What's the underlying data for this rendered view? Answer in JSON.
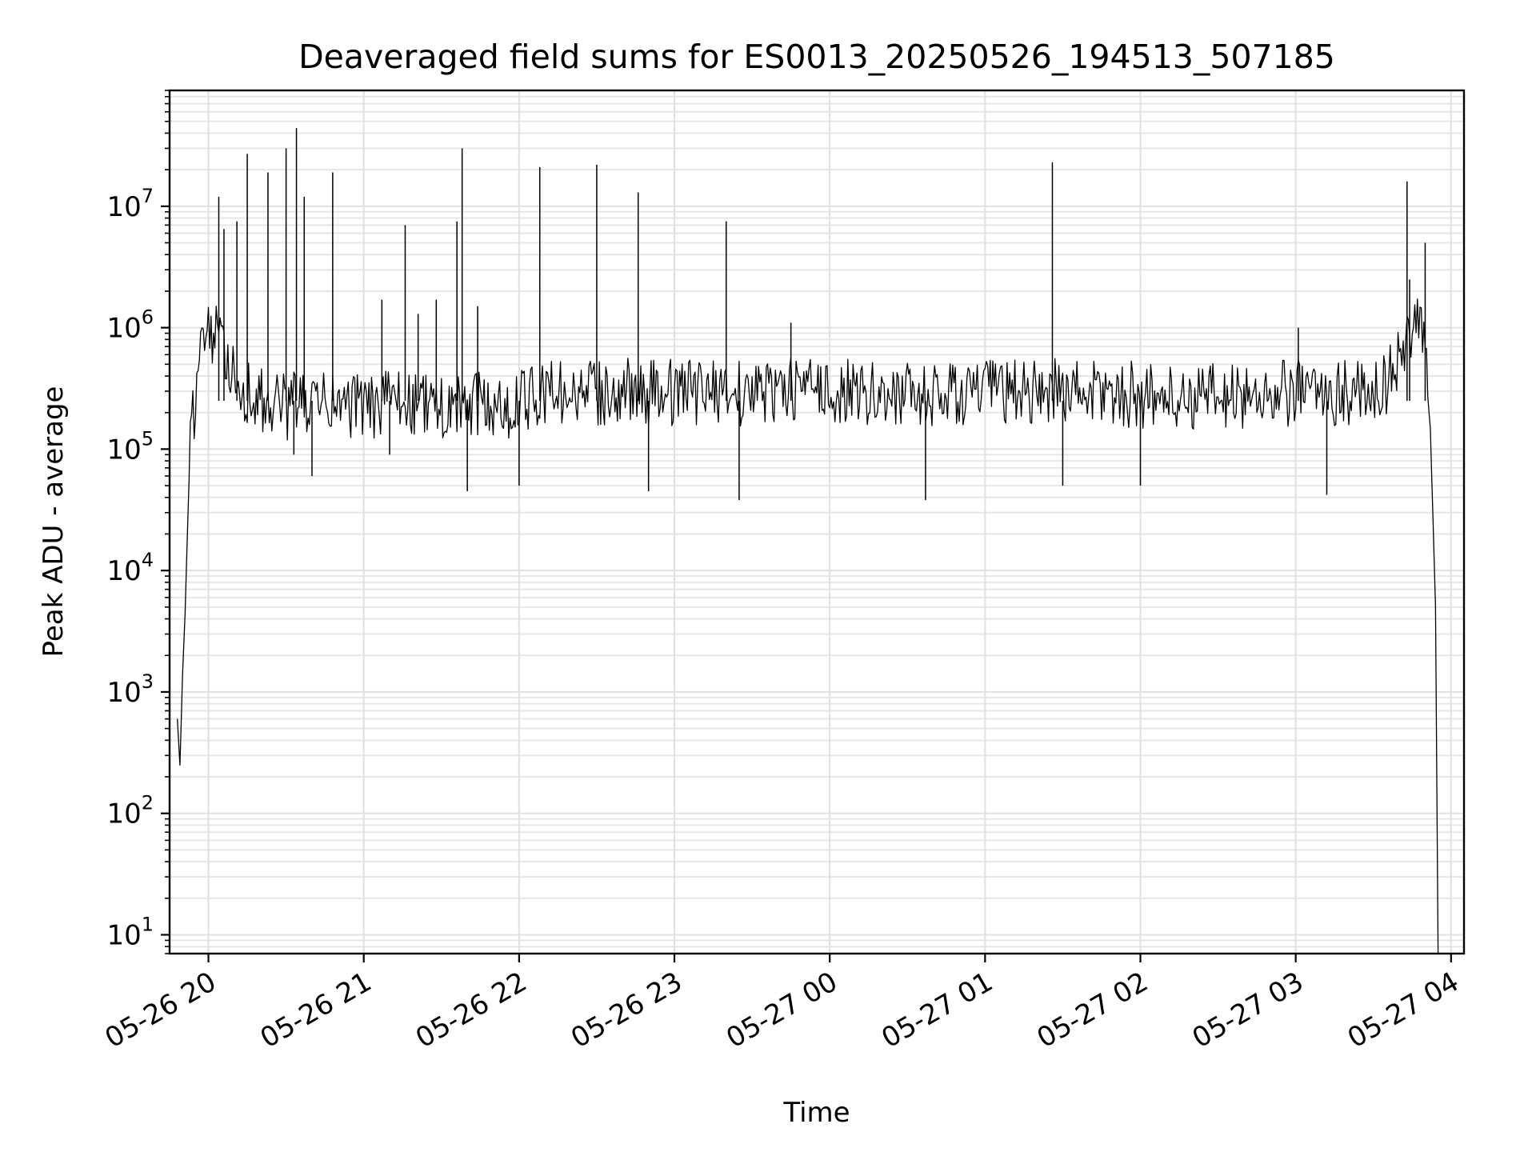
{
  "chart_data": {
    "type": "line",
    "title": "Deaveraged field sums for ES0013_20250526_194513_507185",
    "xlabel": "Time",
    "ylabel": "Peak ADU - average",
    "xscale": "time",
    "yscale": "log",
    "xlim": [
      "2025-05-26 19:45",
      "2025-05-27 04:05"
    ],
    "ylim": [
      7,
      90000000
    ],
    "grid": true,
    "x_ticks": [
      "05-26 20",
      "05-26 21",
      "05-26 22",
      "05-26 23",
      "05-27 00",
      "05-27 01",
      "05-27 02",
      "05-27 03",
      "05-27 04"
    ],
    "y_ticks": [
      {
        "base": "10",
        "exp": "1",
        "value": 10
      },
      {
        "base": "10",
        "exp": "2",
        "value": 100
      },
      {
        "base": "10",
        "exp": "3",
        "value": 1000
      },
      {
        "base": "10",
        "exp": "4",
        "value": 10000
      },
      {
        "base": "10",
        "exp": "5",
        "value": 100000
      },
      {
        "base": "10",
        "exp": "6",
        "value": 1000000
      },
      {
        "base": "10",
        "exp": "7",
        "value": 10000000
      }
    ],
    "series": [
      {
        "color": "#000000",
        "x": [
          "2025-05-26 19:48",
          "2025-05-26 19:49",
          "2025-05-26 19:50",
          "2025-05-26 19:51",
          "2025-05-26 19:52",
          "2025-05-26 19:53",
          "2025-05-26 19:55",
          "2025-05-26 19:57",
          "2025-05-26 19:59",
          "2025-05-26 20:01",
          "2025-05-26 20:03",
          "2025-05-26 20:04",
          "2025-05-26 20:06",
          "2025-05-26 20:07",
          "2025-05-26 20:09",
          "2025-05-26 20:10",
          "2025-05-26 20:12",
          "2025-05-26 20:14",
          "2025-05-26 20:16",
          "2025-05-26 20:20",
          "2025-05-26 20:22",
          "2025-05-26 20:28",
          "2025-05-26 20:30",
          "2025-05-26 20:32",
          "2025-05-26 20:34",
          "2025-05-26 20:36",
          "2025-05-26 20:38",
          "2025-05-26 20:42",
          "2025-05-26 20:50",
          "2025-05-26 21:00",
          "2025-05-26 21:07",
          "2025-05-26 21:12",
          "2025-05-26 21:16",
          "2025-05-26 21:20",
          "2025-05-26 21:30",
          "2025-05-26 21:36",
          "2025-05-26 21:40",
          "2025-05-26 21:45",
          "2025-05-26 21:50",
          "2025-05-26 22:00",
          "2025-05-26 22:08",
          "2025-05-26 22:15",
          "2025-05-26 22:30",
          "2025-05-26 22:31",
          "2025-05-26 22:45",
          "2025-05-26 22:47",
          "2025-05-26 22:55",
          "2025-05-26 23:10",
          "2025-05-26 23:20",
          "2025-05-26 23:25",
          "2025-05-26 23:30",
          "2025-05-26 23:45",
          "2025-05-27 00:00",
          "2025-05-27 00:15",
          "2025-05-27 00:30",
          "2025-05-27 00:37",
          "2025-05-27 00:45",
          "2025-05-27 01:00",
          "2025-05-27 01:15",
          "2025-05-27 01:26",
          "2025-05-27 01:35",
          "2025-05-27 01:45",
          "2025-05-27 02:00",
          "2025-05-27 02:15",
          "2025-05-27 02:30",
          "2025-05-27 02:45",
          "2025-05-27 03:00",
          "2025-05-27 03:05",
          "2025-05-27 03:15",
          "2025-05-27 03:25",
          "2025-05-27 03:30",
          "2025-05-27 03:35",
          "2025-05-27 03:38",
          "2025-05-27 03:40",
          "2025-05-27 03:42",
          "2025-05-27 03:44",
          "2025-05-27 03:46",
          "2025-05-27 03:48",
          "2025-05-27 03:50",
          "2025-05-27 03:52",
          "2025-05-27 03:54",
          "2025-05-27 03:55"
        ],
        "y": [
          600,
          250,
          1400,
          4500,
          25000,
          120000,
          280000,
          550000,
          1100000,
          850000,
          800000,
          600000,
          900000,
          550000,
          450000,
          400000,
          350000,
          300000,
          280000,
          250000,
          230000,
          240000,
          220000,
          230000,
          250000,
          230000,
          220000,
          240000,
          230000,
          220000,
          230000,
          250000,
          240000,
          230000,
          220000,
          210000,
          220000,
          230000,
          220000,
          240000,
          280000,
          300000,
          280000,
          290000,
          300000,
          280000,
          290000,
          300000,
          310000,
          290000,
          300000,
          310000,
          300000,
          290000,
          280000,
          260000,
          280000,
          300000,
          290000,
          310000,
          300000,
          290000,
          280000,
          260000,
          270000,
          280000,
          290000,
          300000,
          290000,
          300000,
          320000,
          350000,
          420000,
          550000,
          750000,
          900000,
          1000000,
          900000,
          600000,
          150000,
          5000,
          7
        ],
        "spikes": [
          {
            "x": "2025-05-26 20:04",
            "y": 12000000
          },
          {
            "x": "2025-05-26 20:06",
            "y": 6500000
          },
          {
            "x": "2025-05-26 20:11",
            "y": 7500000
          },
          {
            "x": "2025-05-26 20:15",
            "y": 27000000
          },
          {
            "x": "2025-05-26 20:23",
            "y": 19000000
          },
          {
            "x": "2025-05-26 20:30",
            "y": 30000000
          },
          {
            "x": "2025-05-26 20:34",
            "y": 44000000
          },
          {
            "x": "2025-05-26 20:37",
            "y": 12000000
          },
          {
            "x": "2025-05-26 20:48",
            "y": 19000000
          },
          {
            "x": "2025-05-26 21:07",
            "y": 1700000
          },
          {
            "x": "2025-05-26 21:16",
            "y": 7000000
          },
          {
            "x": "2025-05-26 21:21",
            "y": 1300000
          },
          {
            "x": "2025-05-26 21:28",
            "y": 1700000
          },
          {
            "x": "2025-05-26 21:36",
            "y": 7500000
          },
          {
            "x": "2025-05-26 21:38",
            "y": 30000000
          },
          {
            "x": "2025-05-26 21:44",
            "y": 1500000
          },
          {
            "x": "2025-05-26 22:08",
            "y": 21000000
          },
          {
            "x": "2025-05-26 22:30",
            "y": 22000000
          },
          {
            "x": "2025-05-26 22:46",
            "y": 13000000
          },
          {
            "x": "2025-05-26 23:20",
            "y": 7500000
          },
          {
            "x": "2025-05-26 23:45",
            "y": 1100000
          },
          {
            "x": "2025-05-27 01:26",
            "y": 23000000
          },
          {
            "x": "2025-05-27 03:01",
            "y": 1000000
          },
          {
            "x": "2025-05-27 03:43",
            "y": 16000000
          },
          {
            "x": "2025-05-27 03:44",
            "y": 2500000
          },
          {
            "x": "2025-05-27 03:50",
            "y": 5000000
          }
        ],
        "dips": [
          {
            "x": "2025-05-26 20:33",
            "y": 90000
          },
          {
            "x": "2025-05-26 20:40",
            "y": 60000
          },
          {
            "x": "2025-05-26 21:10",
            "y": 90000
          },
          {
            "x": "2025-05-26 21:40",
            "y": 45000
          },
          {
            "x": "2025-05-26 22:00",
            "y": 50000
          },
          {
            "x": "2025-05-26 22:50",
            "y": 45000
          },
          {
            "x": "2025-05-26 23:25",
            "y": 38000
          },
          {
            "x": "2025-05-27 00:37",
            "y": 38000
          },
          {
            "x": "2025-05-27 01:30",
            "y": 50000
          },
          {
            "x": "2025-05-27 02:00",
            "y": 50000
          },
          {
            "x": "2025-05-27 03:12",
            "y": 42000
          }
        ]
      }
    ]
  }
}
